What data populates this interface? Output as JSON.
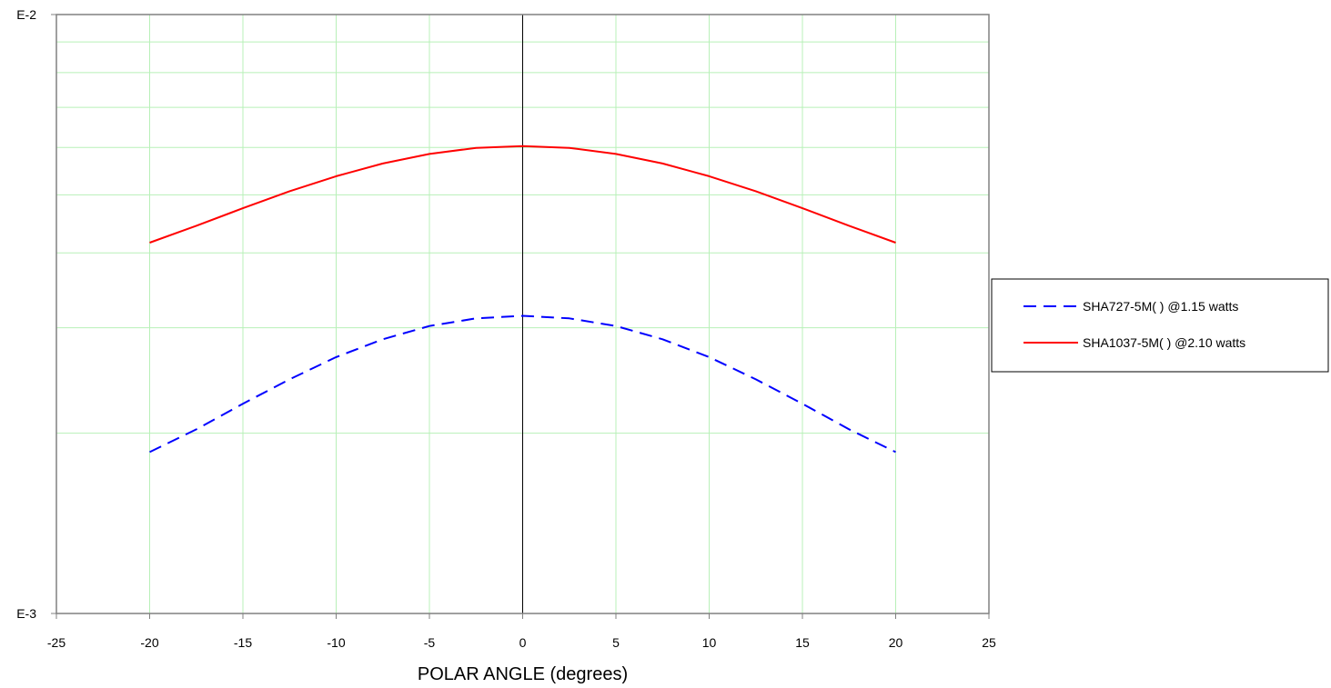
{
  "chart_data": {
    "type": "line",
    "title": "",
    "xlabel": "POLAR ANGLE (degrees)",
    "ylabel": "",
    "xlim": [
      -25,
      25
    ],
    "xticks": [
      -25,
      -20,
      -15,
      -10,
      -5,
      0,
      5,
      10,
      15,
      20,
      25
    ],
    "ylim": [
      0.001,
      0.01
    ],
    "yscale": "log",
    "yticks": [
      {
        "value": 0.01,
        "label": "E-2"
      },
      {
        "value": 0.001,
        "label": "E-3"
      }
    ],
    "grid": true,
    "legend_position": "right",
    "colors": {
      "grid": "#b8f0b8",
      "axis": "#808080",
      "zero_line": "#000000"
    },
    "x": [
      -20,
      -17.5,
      -15,
      -12.5,
      -10,
      -7.5,
      -5,
      -2.5,
      0,
      2.5,
      5,
      7.5,
      10,
      12.5,
      15,
      17.5,
      20
    ],
    "series": [
      {
        "name": "SHA727-5M( ) @1.15 watts",
        "color": "#0000ff",
        "dash": "dashed",
        "values": [
          0.00186,
          0.00203,
          0.00224,
          0.00246,
          0.00268,
          0.00287,
          0.00302,
          0.00311,
          0.00314,
          0.00311,
          0.00302,
          0.00287,
          0.00268,
          0.00246,
          0.00224,
          0.00203,
          0.00186
        ]
      },
      {
        "name": "SHA1037-5M( ) @2.10 watts",
        "color": "#ff0000",
        "dash": "solid",
        "values": [
          0.00416,
          0.00444,
          0.00475,
          0.00507,
          0.00537,
          0.00564,
          0.00585,
          0.00599,
          0.00603,
          0.00599,
          0.00585,
          0.00564,
          0.00537,
          0.00507,
          0.00475,
          0.00444,
          0.00416
        ]
      }
    ]
  }
}
